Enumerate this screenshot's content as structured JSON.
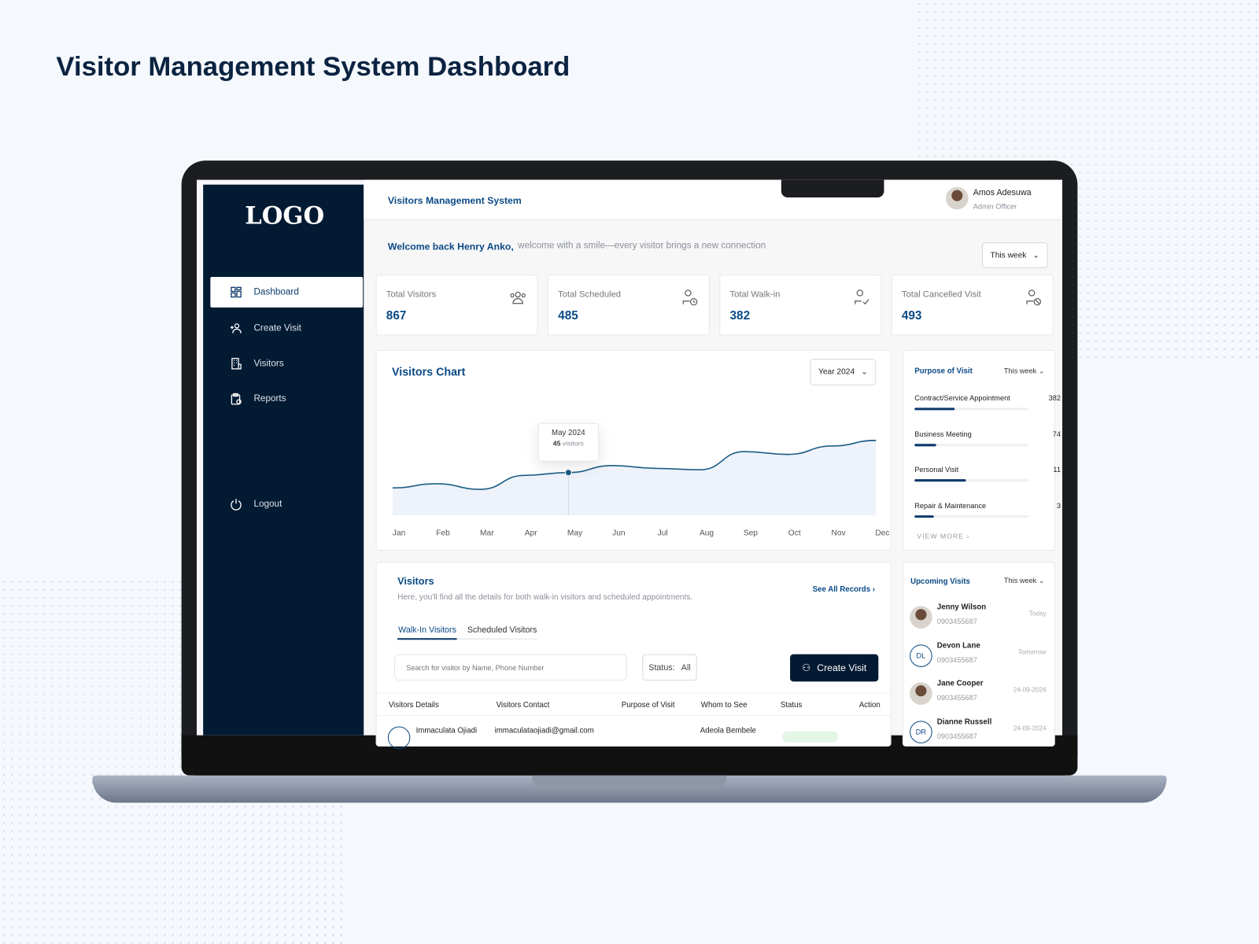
{
  "page_title": "Visitor Management System Dashboard",
  "app": {
    "logo": "LOGO",
    "title": "Visitors Management System"
  },
  "user": {
    "name": "Amos Adesuwa",
    "role": "Admin Officer"
  },
  "sidebar": {
    "items": [
      {
        "label": "Dashboard",
        "icon": "grid-icon",
        "active": true
      },
      {
        "label": "Create Visit",
        "icon": "add-user-icon"
      },
      {
        "label": "Visitors",
        "icon": "building-icon"
      },
      {
        "label": "Reports",
        "icon": "clipboard-icon"
      }
    ],
    "logout": "Logout"
  },
  "welcome": {
    "name": "Welcome back Henry Anko,",
    "message": "welcome with a smile—every visitor brings a new connection",
    "period": "This week"
  },
  "stats": [
    {
      "label": "Total Visitors",
      "value": "867",
      "icon": "users-icon"
    },
    {
      "label": "Total Scheduled",
      "value": "485",
      "icon": "user-clock-icon"
    },
    {
      "label": "Total Walk-in",
      "value": "382",
      "icon": "user-check-icon"
    },
    {
      "label": "Total Cancelled Visit",
      "value": "493",
      "icon": "user-cancel-icon"
    }
  ],
  "chart_data": {
    "type": "area",
    "title": "Visitors Chart",
    "filter": "Year 2024",
    "categories": [
      "Jan",
      "Feb",
      "Mar",
      "Apr",
      "May",
      "Jun",
      "Jul",
      "Aug",
      "Sep",
      "Oct",
      "Nov",
      "Dec"
    ],
    "values": [
      34,
      37,
      33,
      43,
      45,
      50,
      48,
      47,
      60,
      58,
      64,
      68
    ],
    "tooltip": {
      "label": "May 2024",
      "value": "45",
      "unit": "visitors"
    },
    "grid": false,
    "color": "#1d5e86"
  },
  "purpose": {
    "title": "Purpose of Visit",
    "period": "This week",
    "view_more": "VIEW MORE",
    "items": [
      {
        "label": "Contract/Service Appointment",
        "value": "382",
        "fill": 0.35
      },
      {
        "label": "Business Meeting",
        "value": "74",
        "fill": 0.19
      },
      {
        "label": "Personal Visit",
        "value": "11",
        "fill": 0.45
      },
      {
        "label": "Repair & Maintenance",
        "value": "3",
        "fill": 0.17
      }
    ]
  },
  "upcoming": {
    "title": "Upcoming Visits",
    "period": "This week",
    "items": [
      {
        "name": "Jenny Wilson",
        "phone": "0903455687",
        "when": "Today",
        "initials": ""
      },
      {
        "name": "Devon Lane",
        "phone": "0903455687",
        "when": "Tomorrow",
        "initials": "DL"
      },
      {
        "name": "Jane Cooper",
        "phone": "0903455687",
        "when": "24-09-2024",
        "initials": ""
      },
      {
        "name": "Dianne Russell",
        "phone": "0903455687",
        "when": "24-09-2024",
        "initials": "DR"
      }
    ]
  },
  "visitors": {
    "title": "Visitors",
    "subtitle": "Here, you'll find all the details for both walk-in visitors and scheduled appointments.",
    "see_all": "See All Records",
    "tabs": [
      "Walk-In Visitors",
      "Scheduled Visitors"
    ],
    "search_placeholder": "Search for visitor by Name, Phone Number",
    "status_label": "Status:",
    "status_value": "All",
    "create": "Create Visit",
    "columns": [
      "Visitors Details",
      "Visitors Contact",
      "Purpose of Visit",
      "Whom to See",
      "Status",
      "Action"
    ],
    "rows": [
      {
        "name": "Immaculata Ojiadi",
        "contact": "immaculataojiadi@gmail.com",
        "whom": "Adeola Bembele"
      }
    ]
  }
}
